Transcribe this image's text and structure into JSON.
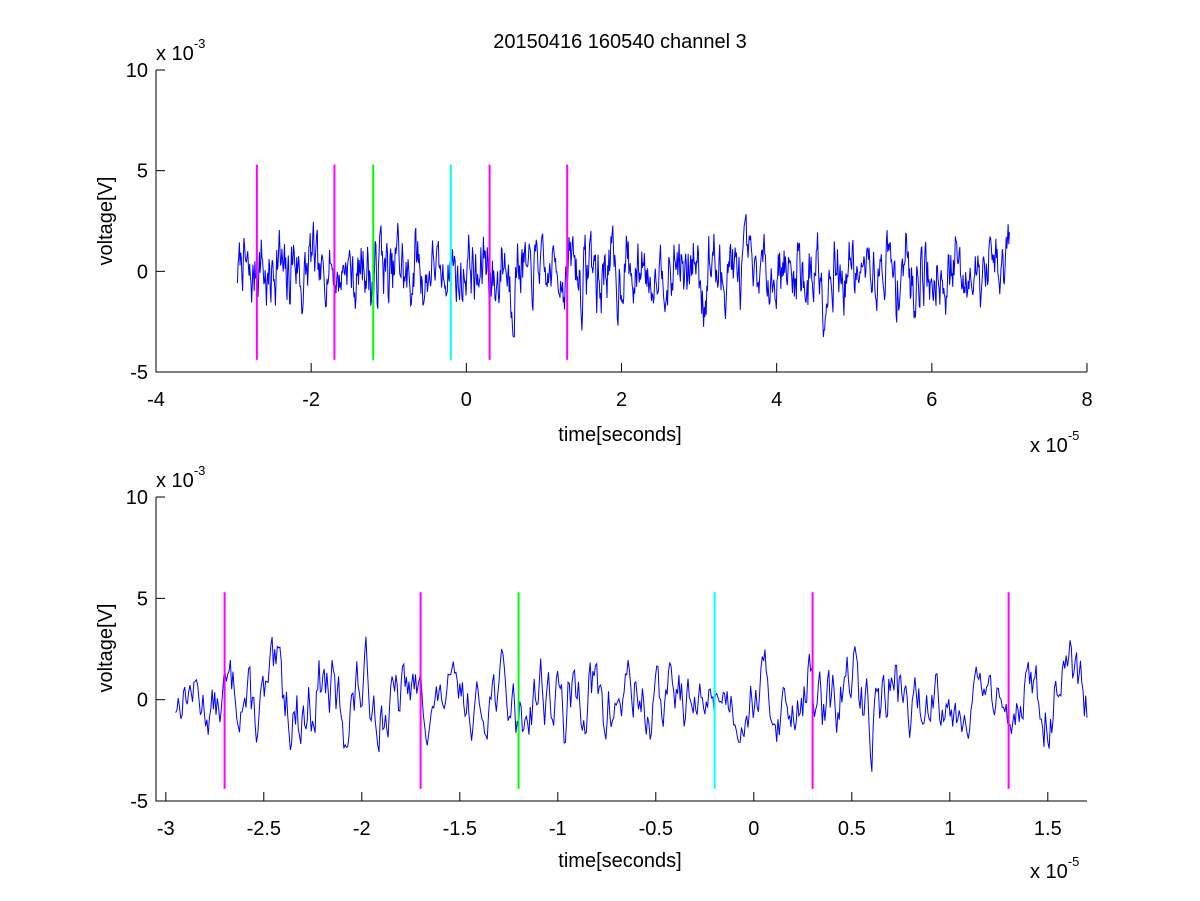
{
  "title": "20150416 160540 channel 3",
  "colors": {
    "signal": "#0000ff",
    "markers": {
      "magenta": "#ff00ff",
      "green": "#00ff00",
      "cyan": "#00ffff"
    },
    "axes": "#000000"
  },
  "chart_data": [
    {
      "type": "line",
      "title": "20150416 160540 channel 3",
      "xlabel": "time[seconds]",
      "ylabel": "voltage[V]",
      "x_exponent": {
        "base": "x 10",
        "power": "-5"
      },
      "y_exponent": {
        "base": "x 10",
        "power": "-3"
      },
      "xlim": [
        -4,
        8
      ],
      "ylim": [
        -5,
        10
      ],
      "xticks": [
        "-4",
        "-2",
        "0",
        "2",
        "4",
        "6",
        "8"
      ],
      "yticks": [
        "-5",
        "0",
        "5",
        "10"
      ],
      "grid": false,
      "series": [
        {
          "x_range": [
            -2.95,
            7.0
          ],
          "y_range": [
            -3.5,
            3.2
          ],
          "samples": 1200,
          "seed": 7
        }
      ],
      "markers": [
        {
          "x": -2.7,
          "color": "magenta",
          "y0": -4.4,
          "y1": 5.3
        },
        {
          "x": -1.7,
          "color": "magenta",
          "y0": -4.4,
          "y1": 5.3
        },
        {
          "x": -1.2,
          "color": "green",
          "y0": -4.4,
          "y1": 5.3
        },
        {
          "x": -0.2,
          "color": "cyan",
          "y0": -4.4,
          "y1": 5.3
        },
        {
          "x": 0.3,
          "color": "magenta",
          "y0": -4.4,
          "y1": 5.3
        },
        {
          "x": 1.3,
          "color": "magenta",
          "y0": -4.4,
          "y1": 5.3
        }
      ]
    },
    {
      "type": "line",
      "title": "",
      "xlabel": "time[seconds]",
      "ylabel": "voltage[V]",
      "x_exponent": {
        "base": "x 10",
        "power": "-5"
      },
      "y_exponent": {
        "base": "x 10",
        "power": "-3"
      },
      "xlim": [
        -3.05,
        1.7
      ],
      "ylim": [
        -5,
        10
      ],
      "xticks": [
        "-3",
        "-2.5",
        "-2",
        "-1.5",
        "-1",
        "-0.5",
        "0",
        "0.5",
        "1",
        "1.5"
      ],
      "yticks": [
        "-5",
        "0",
        "5",
        "10"
      ],
      "grid": false,
      "series": [
        {
          "x_range": [
            -2.95,
            1.7
          ],
          "y_range": [
            -4.0,
            4.8
          ],
          "samples": 700,
          "seed": 13
        }
      ],
      "markers": [
        {
          "x": -2.7,
          "color": "magenta",
          "y0": -4.4,
          "y1": 5.3
        },
        {
          "x": -1.7,
          "color": "magenta",
          "y0": -4.4,
          "y1": 5.3
        },
        {
          "x": -1.2,
          "color": "green",
          "y0": -4.4,
          "y1": 5.3
        },
        {
          "x": -0.2,
          "color": "cyan",
          "y0": -4.4,
          "y1": 5.3
        },
        {
          "x": 0.3,
          "color": "magenta",
          "y0": -4.4,
          "y1": 5.3
        },
        {
          "x": 1.3,
          "color": "magenta",
          "y0": -4.4,
          "y1": 5.3
        }
      ]
    }
  ]
}
